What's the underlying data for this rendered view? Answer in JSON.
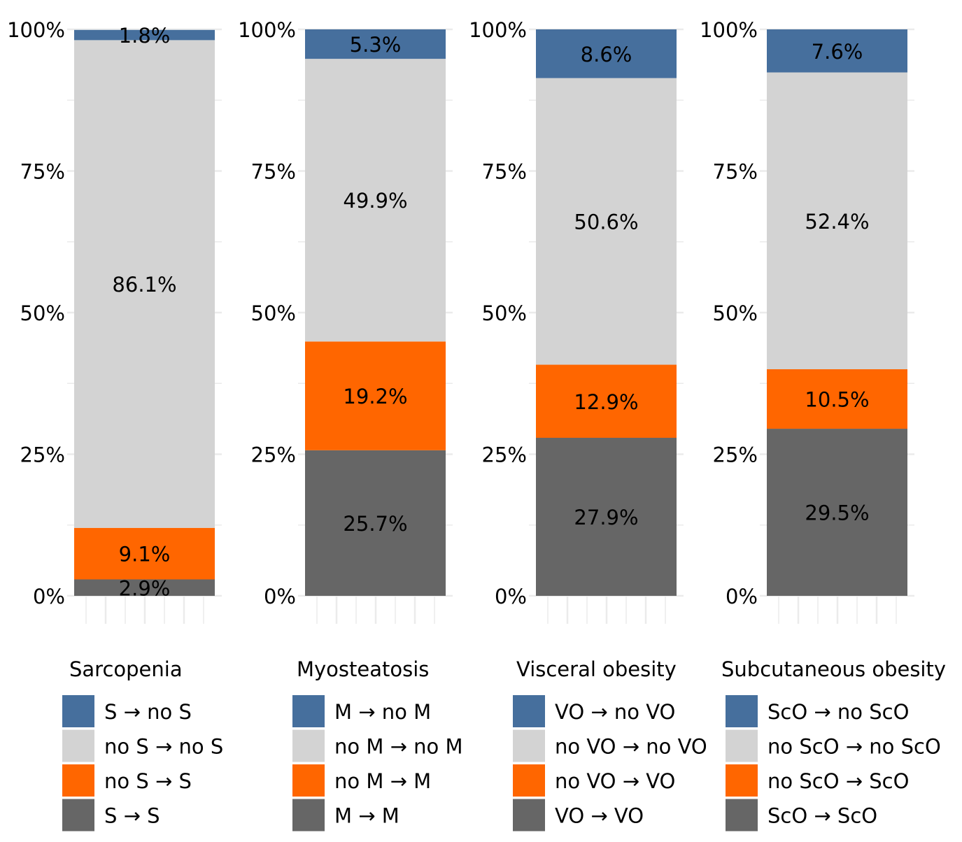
{
  "chart_data": [
    {
      "type": "bar",
      "stacked": true,
      "title": "Sarcopenia",
      "ylim": [
        0,
        100
      ],
      "yticks": [
        "0%",
        "25%",
        "50%",
        "75%",
        "100%"
      ],
      "series": [
        {
          "name": "S → S",
          "value": 2.9,
          "label": "2.9%",
          "color": "#666666"
        },
        {
          "name": "no S → S",
          "value": 9.1,
          "label": "9.1%",
          "color": "#ff6600"
        },
        {
          "name": "no S → no S",
          "value": 86.1,
          "label": "86.1%",
          "color": "#d3d3d3"
        },
        {
          "name": "S → no S",
          "value": 1.8,
          "label": "1.8%",
          "color": "#466f9d"
        }
      ]
    },
    {
      "type": "bar",
      "stacked": true,
      "title": "Myosteatosis",
      "ylim": [
        0,
        100
      ],
      "yticks": [
        "0%",
        "25%",
        "50%",
        "75%",
        "100%"
      ],
      "series": [
        {
          "name": "M → M",
          "value": 25.7,
          "label": "25.7%",
          "color": "#666666"
        },
        {
          "name": "no M → M",
          "value": 19.2,
          "label": "19.2%",
          "color": "#ff6600"
        },
        {
          "name": "no M → no M",
          "value": 49.9,
          "label": "49.9%",
          "color": "#d3d3d3"
        },
        {
          "name": "M → no M",
          "value": 5.3,
          "label": "5.3%",
          "color": "#466f9d"
        }
      ]
    },
    {
      "type": "bar",
      "stacked": true,
      "title": "Visceral obesity",
      "ylim": [
        0,
        100
      ],
      "yticks": [
        "0%",
        "25%",
        "50%",
        "75%",
        "100%"
      ],
      "series": [
        {
          "name": "VO → VO",
          "value": 27.9,
          "label": "27.9%",
          "color": "#666666"
        },
        {
          "name": "no VO → VO",
          "value": 12.9,
          "label": "12.9%",
          "color": "#ff6600"
        },
        {
          "name": "no VO → no VO",
          "value": 50.6,
          "label": "50.6%",
          "color": "#d3d3d3"
        },
        {
          "name": "VO → no VO",
          "value": 8.6,
          "label": "8.6%",
          "color": "#466f9d"
        }
      ]
    },
    {
      "type": "bar",
      "stacked": true,
      "title": "Subcutaneous obesity",
      "ylim": [
        0,
        100
      ],
      "yticks": [
        "0%",
        "25%",
        "50%",
        "75%",
        "100%"
      ],
      "series": [
        {
          "name": "ScO → ScO",
          "value": 29.5,
          "label": "29.5%",
          "color": "#666666"
        },
        {
          "name": "no ScO → ScO",
          "value": 10.5,
          "label": "10.5%",
          "color": "#ff6600"
        },
        {
          "name": "no ScO → no ScO",
          "value": 52.4,
          "label": "52.4%",
          "color": "#d3d3d3"
        },
        {
          "name": "ScO → no ScO",
          "value": 7.6,
          "label": "7.6%",
          "color": "#466f9d"
        }
      ]
    }
  ]
}
